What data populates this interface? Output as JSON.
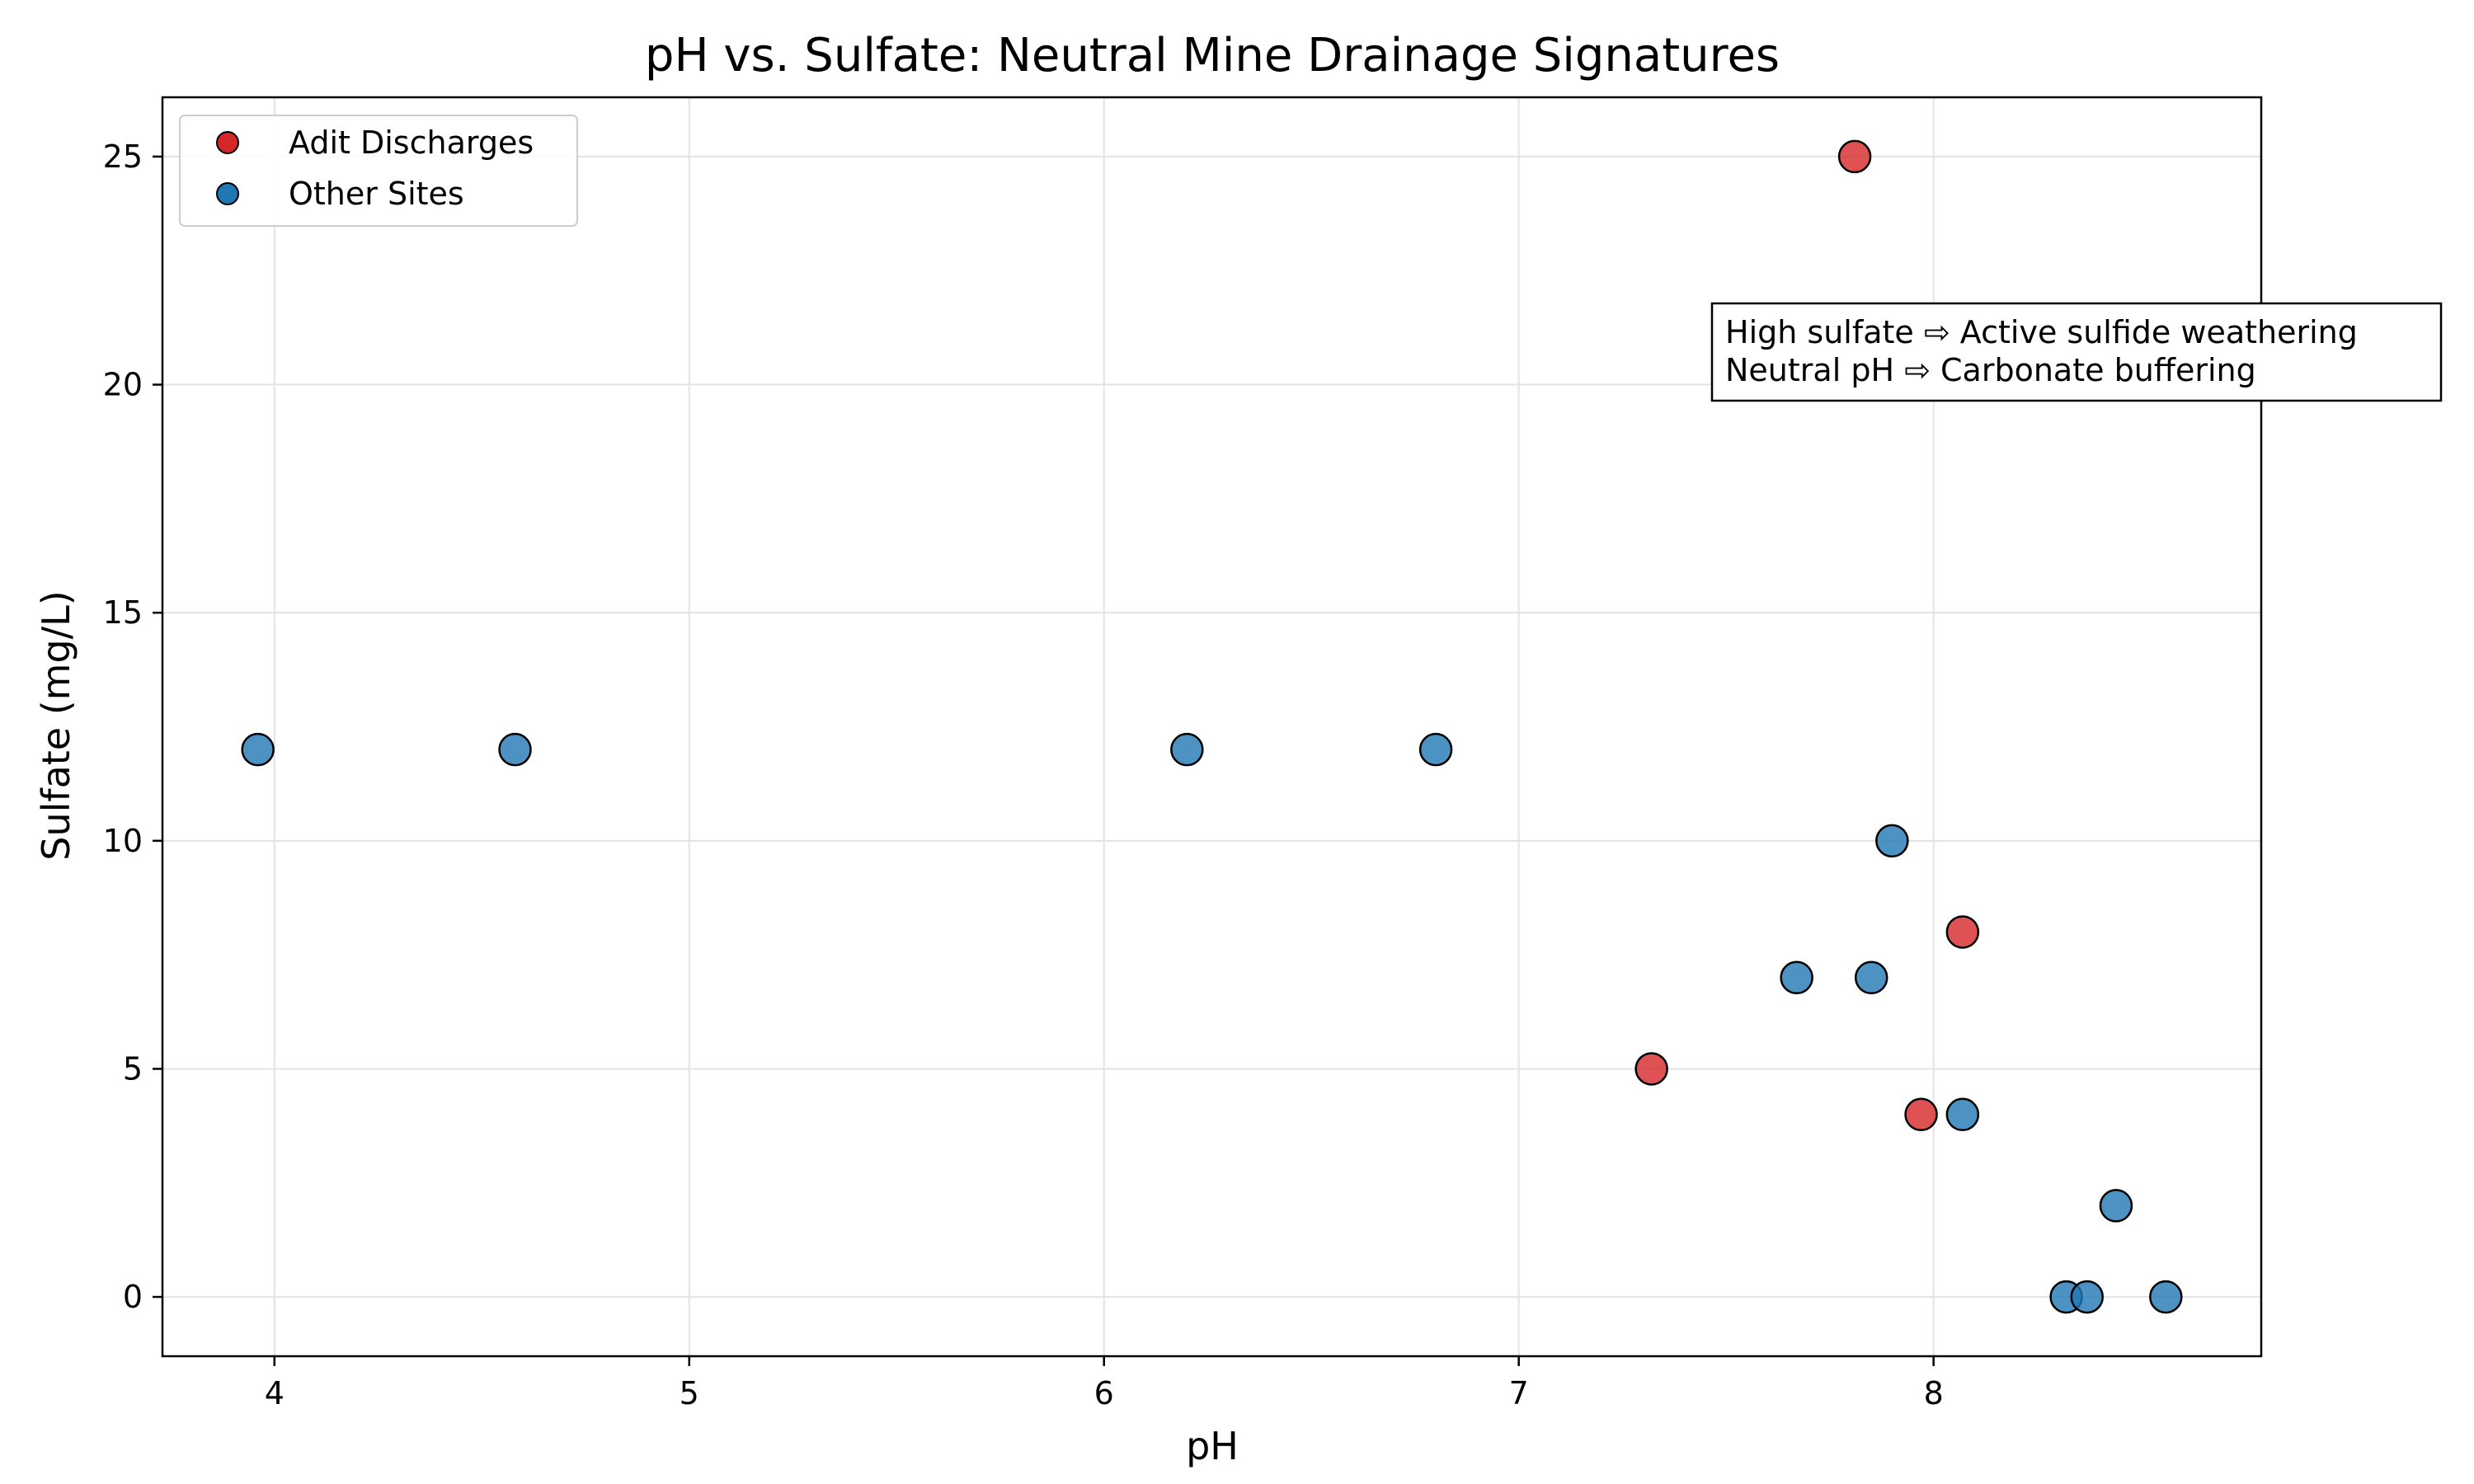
{
  "chart_data": {
    "type": "scatter",
    "title": "pH vs. Sulfate: Neutral Mine Drainage Signatures",
    "xlabel": "pH",
    "ylabel": "Sulfate (mg/L)",
    "xlim": [
      3.73,
      8.79
    ],
    "ylim": [
      -1.3,
      26.3
    ],
    "xticks": [
      4,
      5,
      6,
      7,
      8
    ],
    "yticks": [
      0,
      5,
      10,
      15,
      20,
      25
    ],
    "grid": true,
    "legend_position": "top-left",
    "series": [
      {
        "name": "Adit Discharges",
        "color": "#d62728",
        "points": [
          {
            "x": 7.81,
            "y": 25
          },
          {
            "x": 8.07,
            "y": 8
          },
          {
            "x": 7.32,
            "y": 5
          },
          {
            "x": 7.97,
            "y": 4
          }
        ]
      },
      {
        "name": "Other Sites",
        "color": "#1f77b4",
        "points": [
          {
            "x": 3.96,
            "y": 12
          },
          {
            "x": 4.58,
            "y": 12
          },
          {
            "x": 6.2,
            "y": 12
          },
          {
            "x": 6.8,
            "y": 12
          },
          {
            "x": 7.9,
            "y": 10
          },
          {
            "x": 7.67,
            "y": 7
          },
          {
            "x": 7.85,
            "y": 7
          },
          {
            "x": 8.07,
            "y": 4
          },
          {
            "x": 8.44,
            "y": 2
          },
          {
            "x": 8.32,
            "y": 0
          },
          {
            "x": 8.37,
            "y": 0
          },
          {
            "x": 8.56,
            "y": 0
          }
        ]
      }
    ],
    "annotation": {
      "lines": [
        "High sulfate ⇨ Active sulfide weathering",
        "Neutral pH ⇨ Carbonate buffering"
      ]
    }
  }
}
